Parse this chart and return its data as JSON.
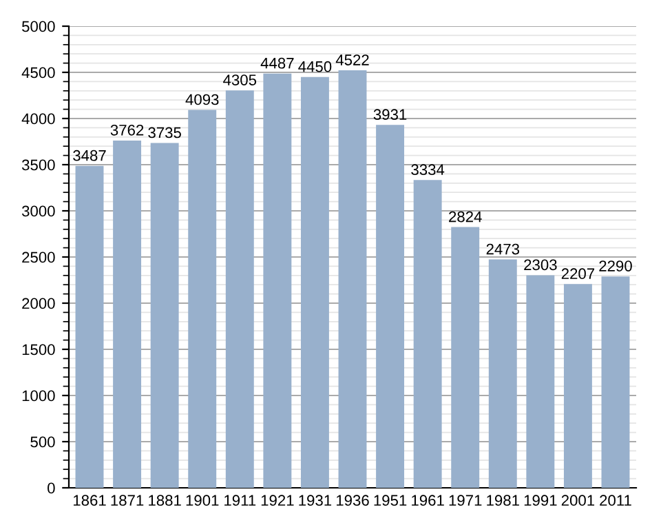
{
  "chart_data": {
    "type": "bar",
    "categories": [
      "1861",
      "1871",
      "1881",
      "1901",
      "1911",
      "1921",
      "1931",
      "1936",
      "1951",
      "1961",
      "1971",
      "1981",
      "1991",
      "2001",
      "2011"
    ],
    "values": [
      3487,
      3762,
      3735,
      4093,
      4305,
      4487,
      4450,
      4522,
      3931,
      3334,
      2824,
      2473,
      2303,
      2207,
      2290
    ],
    "color": "#98b0cc",
    "data_labels": true,
    "grid": "y",
    "ylim": [
      0,
      5000
    ],
    "yticks": [
      0,
      500,
      1000,
      1500,
      2000,
      2500,
      3000,
      3500,
      4000,
      4500,
      5000,
      {
        "value": 100,
        "label": null
      },
      {
        "value": 200,
        "label": null
      },
      {
        "value": 300,
        "label": null
      },
      {
        "value": 400,
        "label": null
      },
      {
        "value": 600,
        "label": null
      },
      {
        "value": 700,
        "label": null
      },
      {
        "value": 800,
        "label": null
      },
      {
        "value": 900,
        "label": null
      },
      {
        "value": 1100,
        "label": null
      },
      {
        "value": 1200,
        "label": null
      },
      {
        "value": 1300,
        "label": null
      },
      {
        "value": 1400,
        "label": null
      },
      {
        "value": 1600,
        "label": null
      },
      {
        "value": 1700,
        "label": null
      },
      {
        "value": 1800,
        "label": null
      },
      {
        "value": 1900,
        "label": null
      },
      {
        "value": 2100,
        "label": null
      },
      {
        "value": 2200,
        "label": null
      },
      {
        "value": 2300,
        "label": null
      },
      {
        "value": 2400,
        "label": null
      },
      {
        "value": 2600,
        "label": null
      },
      {
        "value": 2700,
        "label": null
      },
      {
        "value": 2800,
        "label": null
      },
      {
        "value": 2900,
        "label": null
      },
      {
        "value": 3100,
        "label": null
      },
      {
        "value": 3200,
        "label": null
      },
      {
        "value": 3300,
        "label": null
      },
      {
        "value": 3400,
        "label": null
      },
      {
        "value": 3600,
        "label": null
      },
      {
        "value": 3700,
        "label": null
      },
      {
        "value": 3800,
        "label": null
      },
      {
        "value": 3900,
        "label": null
      },
      {
        "value": 4100,
        "label": null
      },
      {
        "value": 4200,
        "label": null
      },
      {
        "value": 4300,
        "label": null
      },
      {
        "value": 4400,
        "label": null
      },
      {
        "value": 4600,
        "label": null
      },
      {
        "value": 4700,
        "label": null
      },
      {
        "value": 4800,
        "label": null
      },
      {
        "value": 4900,
        "label": null
      }
    ]
  }
}
